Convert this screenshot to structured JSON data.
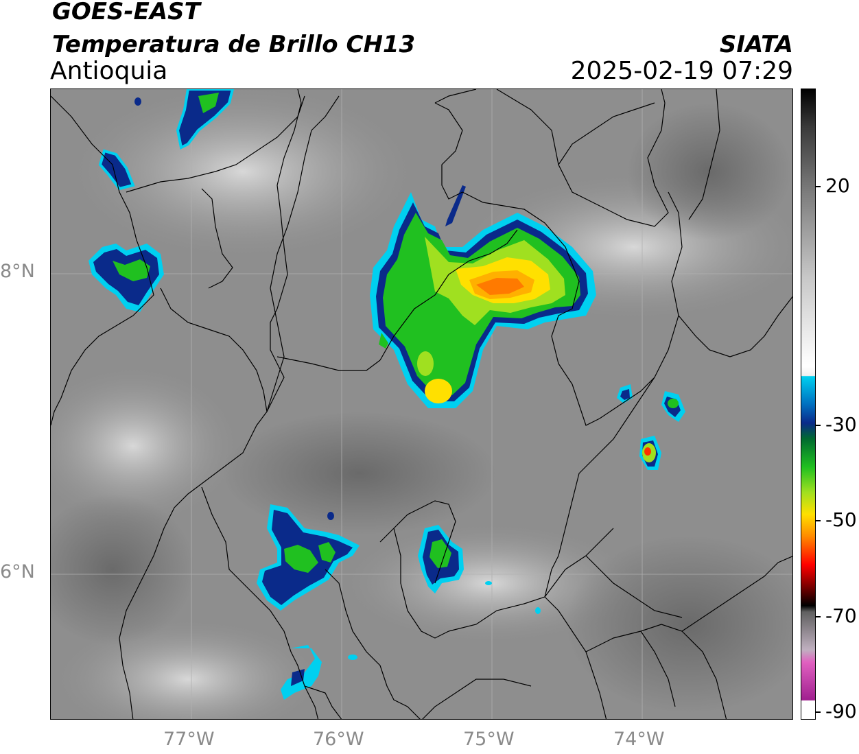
{
  "header": {
    "satellite": "GOES-EAST",
    "product": "Temperatura de Brillo CH13",
    "region": "Antioquia",
    "agency": "SIATA",
    "datetime": "2025-02-19 07:29"
  },
  "map": {
    "lat_labels": [
      "8°N",
      "6°N"
    ],
    "lon_labels": [
      "77°W",
      "76°W",
      "75°W",
      "74°W"
    ],
    "gridlines": true
  },
  "colorbar": {
    "labels": [
      "20",
      "-30",
      "-50",
      "-70",
      "-90"
    ],
    "colors": {
      "cold_magenta": "#a0208f",
      "pink": "#e060c0",
      "black": "#000000",
      "red": "#ff0000",
      "orange": "#ff8a00",
      "yellow": "#ffe000",
      "green": "#20c020",
      "dark_blue": "#0a2a8a",
      "cyan": "#00d0f0",
      "white": "#ffffff",
      "gray": "#7a7a7a"
    }
  }
}
